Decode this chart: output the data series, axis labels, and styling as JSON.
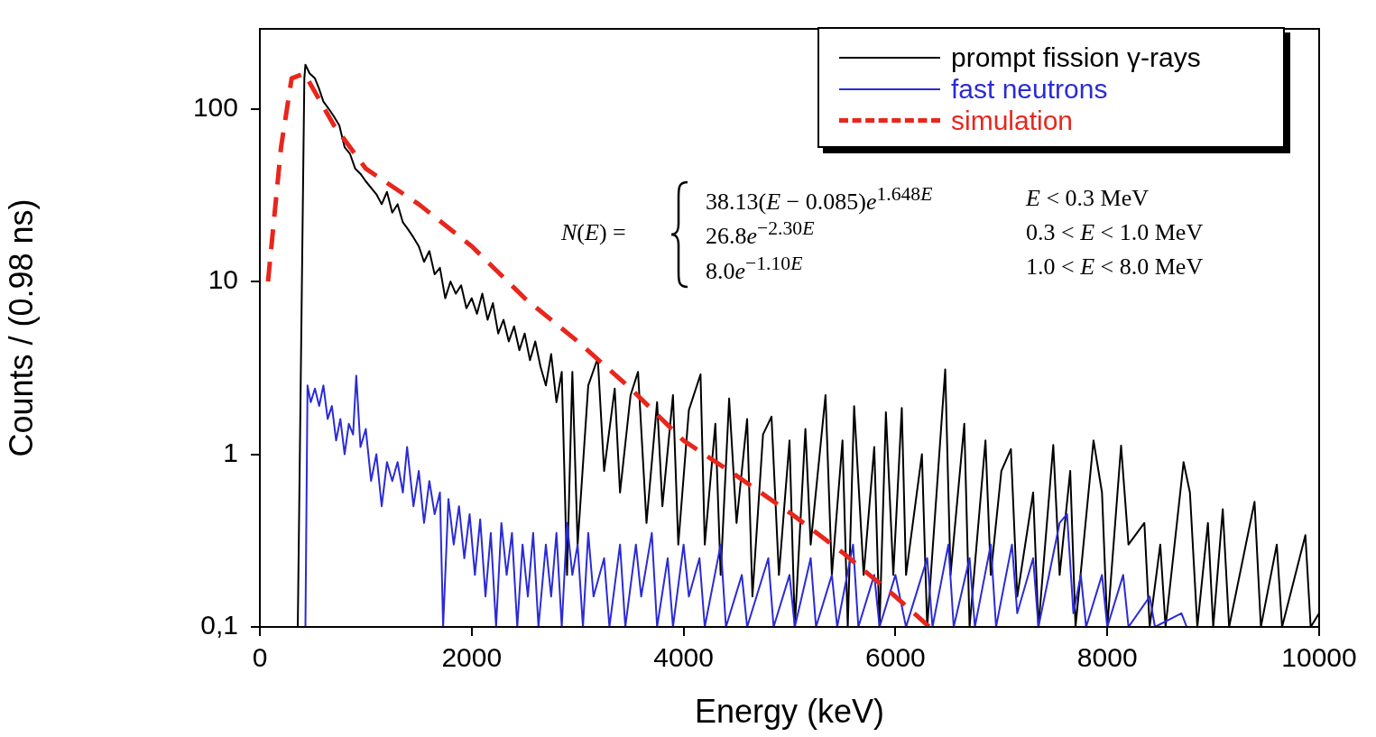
{
  "chart_data": {
    "type": "line",
    "xlabel": "Energy (keV)",
    "ylabel": "Counts / (0.98 ns)",
    "log": "y",
    "grid": false,
    "legend": "top right",
    "marker": "none",
    "xlim": [
      0,
      10000
    ],
    "xticks": [
      0,
      2000,
      4000,
      6000,
      8000,
      10000
    ],
    "ylim": [
      0.1,
      290
    ],
    "yticks": [
      {
        "value": 0.1,
        "label": "0,1"
      },
      1,
      10,
      100
    ],
    "annotations": [
      "N(E) =",
      "38.13(E − 0.085)e$^{1.648E}$",
      "E < 0.3 MeV",
      "26.8e$^{−2.30E}$",
      "0.3 < E < 1.0 MeV",
      "8.0e$^{−1.10E}$",
      "1.0 < E < 8.0 MeV"
    ],
    "series": [
      {
        "name": "prompt fission γ-rays",
        "color": "#000000",
        "line_style": "solid",
        "x": [
          358,
          420,
          430,
          470,
          520,
          560,
          600,
          650,
          700,
          750,
          800,
          850,
          900,
          950,
          1000,
          1100,
          1150,
          1200,
          1250,
          1300,
          1350,
          1400,
          1450,
          1500,
          1550,
          1600,
          1650,
          1700,
          1750,
          1800,
          1850,
          1900,
          1950,
          2000,
          2050,
          2100,
          2150,
          2200,
          2250,
          2300,
          2350,
          2400,
          2450,
          2500,
          2550,
          2600,
          2650,
          2700,
          2750,
          2800,
          2850,
          2900,
          2950,
          3000,
          3100,
          3190,
          3250,
          3350,
          3400,
          3500,
          3570,
          3650,
          3750,
          3800,
          3900,
          3950,
          4050,
          4160,
          4200,
          4300,
          4350,
          4430,
          4500,
          4600,
          4650,
          4750,
          4830,
          4900,
          5000,
          5050,
          5150,
          5200,
          5340,
          5400,
          5500,
          5550,
          5610,
          5700,
          5800,
          5850,
          5910,
          5980,
          6060,
          6100,
          6250,
          6300,
          6470,
          6520,
          6650,
          6700,
          6850,
          6900,
          7000,
          7090,
          7150,
          7300,
          7350,
          7490,
          7550,
          7650,
          7700,
          7870,
          7950,
          8000,
          8130,
          8200,
          8350,
          8400,
          8500,
          8550,
          8720,
          8780,
          8850,
          8950,
          9000,
          9090,
          9150,
          9390,
          9450,
          9600,
          9650,
          9870,
          9920,
          10000
        ],
        "values": [
          0.1,
          150,
          180,
          160,
          150,
          130,
          110,
          100,
          90,
          80,
          60,
          55,
          45,
          42,
          38,
          32,
          28,
          33,
          25,
          28,
          22,
          20,
          18,
          16,
          13,
          15,
          11,
          12,
          8,
          10,
          8.5,
          9.5,
          7,
          8,
          6.5,
          8.5,
          6,
          7.5,
          5,
          6,
          4.5,
          5.5,
          4,
          5,
          3.5,
          4.5,
          3.2,
          2.5,
          3.8,
          2,
          3,
          0.2,
          3,
          0.3,
          2.5,
          3.6,
          0.8,
          2.4,
          0.6,
          2.2,
          3,
          0.4,
          2,
          0.5,
          2.2,
          0.3,
          1.8,
          2.9,
          0.3,
          1.5,
          0.2,
          2.1,
          0.4,
          1.6,
          0.15,
          1.3,
          1.65,
          0.2,
          1.2,
          0.1,
          1.4,
          0.3,
          2.2,
          0.2,
          1.2,
          0.1,
          1.9,
          0.2,
          1.1,
          0.1,
          1.75,
          0.2,
          1.85,
          0.2,
          1,
          0.1,
          3.1,
          0.2,
          1.5,
          0.1,
          1.2,
          0.2,
          0.8,
          1.07,
          0.15,
          0.6,
          0.1,
          1.13,
          0.2,
          0.8,
          0.1,
          1.2,
          0.6,
          0.1,
          1.12,
          0.3,
          0.4,
          0.1,
          0.3,
          0.1,
          0.9,
          0.6,
          0.1,
          0.4,
          0.1,
          0.48,
          0.1,
          0.53,
          0.1,
          0.3,
          0.1,
          0.34,
          0.1,
          0.12
        ]
      },
      {
        "name": "fast neutrons",
        "color": "#2b2bd6",
        "line_style": "solid",
        "x": [
          430,
          450,
          480,
          520,
          560,
          600,
          640,
          680,
          720,
          760,
          800,
          840,
          880,
          910,
          950,
          1000,
          1050,
          1100,
          1150,
          1200,
          1250,
          1300,
          1350,
          1390,
          1450,
          1500,
          1550,
          1600,
          1650,
          1700,
          1730,
          1780,
          1830,
          1880,
          1930,
          1980,
          2030,
          2080,
          2130,
          2180,
          2230,
          2280,
          2330,
          2380,
          2430,
          2480,
          2530,
          2580,
          2630,
          2700,
          2750,
          2800,
          2850,
          2900,
          2950,
          3000,
          3050,
          3100,
          3150,
          3250,
          3300,
          3400,
          3450,
          3550,
          3600,
          3700,
          3750,
          3850,
          3900,
          4000,
          4050,
          4150,
          4200,
          4350,
          4400,
          4550,
          4600,
          4800,
          4850,
          5000,
          5050,
          5200,
          5250,
          5400,
          5450,
          5600,
          5650,
          5800,
          5850,
          6000,
          6100,
          6300,
          6350,
          6500,
          6550,
          6700,
          6750,
          6900,
          6950,
          7100,
          7150,
          7300,
          7350,
          7550,
          7620,
          7680,
          7750,
          7800,
          7950,
          8000,
          8150,
          8200,
          8400,
          8450,
          8700,
          8750
        ],
        "values": [
          0.1,
          2.5,
          2,
          2.4,
          1.9,
          2.5,
          1.6,
          1.9,
          1.2,
          1.6,
          1,
          1.5,
          1.3,
          2.85,
          1.1,
          1.4,
          0.7,
          1,
          0.5,
          0.9,
          0.7,
          0.9,
          0.6,
          1.1,
          0.5,
          0.8,
          0.4,
          0.7,
          0.45,
          0.6,
          0.1,
          0.55,
          0.3,
          0.5,
          0.25,
          0.45,
          0.2,
          0.42,
          0.15,
          0.35,
          0.1,
          0.4,
          0.2,
          0.35,
          0.1,
          0.3,
          0.15,
          0.35,
          0.1,
          0.3,
          0.15,
          0.35,
          0.1,
          0.4,
          0.2,
          0.3,
          0.1,
          0.35,
          0.15,
          0.25,
          0.1,
          0.3,
          0.1,
          0.3,
          0.15,
          0.35,
          0.1,
          0.25,
          0.1,
          0.3,
          0.15,
          0.25,
          0.1,
          0.3,
          0.1,
          0.2,
          0.1,
          0.25,
          0.1,
          0.2,
          0.1,
          0.25,
          0.1,
          0.2,
          0.1,
          0.3,
          0.1,
          0.2,
          0.1,
          0.2,
          0.1,
          0.25,
          0.1,
          0.3,
          0.1,
          0.25,
          0.1,
          0.3,
          0.1,
          0.3,
          0.12,
          0.25,
          0.1,
          0.4,
          0.45,
          0.12,
          0.2,
          0.1,
          0.2,
          0.1,
          0.2,
          0.1,
          0.15,
          0.1,
          0.12,
          0.1
        ]
      },
      {
        "name": "simulation",
        "color": "#e8261c",
        "line_style": "dashed",
        "x": [
          77,
          200,
          300,
          420,
          700,
          1000,
          1500,
          2000,
          2500,
          3000,
          3500,
          4000,
          4500,
          5000,
          5500,
          6000,
          6320
        ],
        "values": [
          10,
          60,
          150,
          160,
          80,
          45,
          28,
          16,
          8,
          4.5,
          2.4,
          1.2,
          0.75,
          0.46,
          0.27,
          0.15,
          0.1
        ]
      }
    ]
  }
}
